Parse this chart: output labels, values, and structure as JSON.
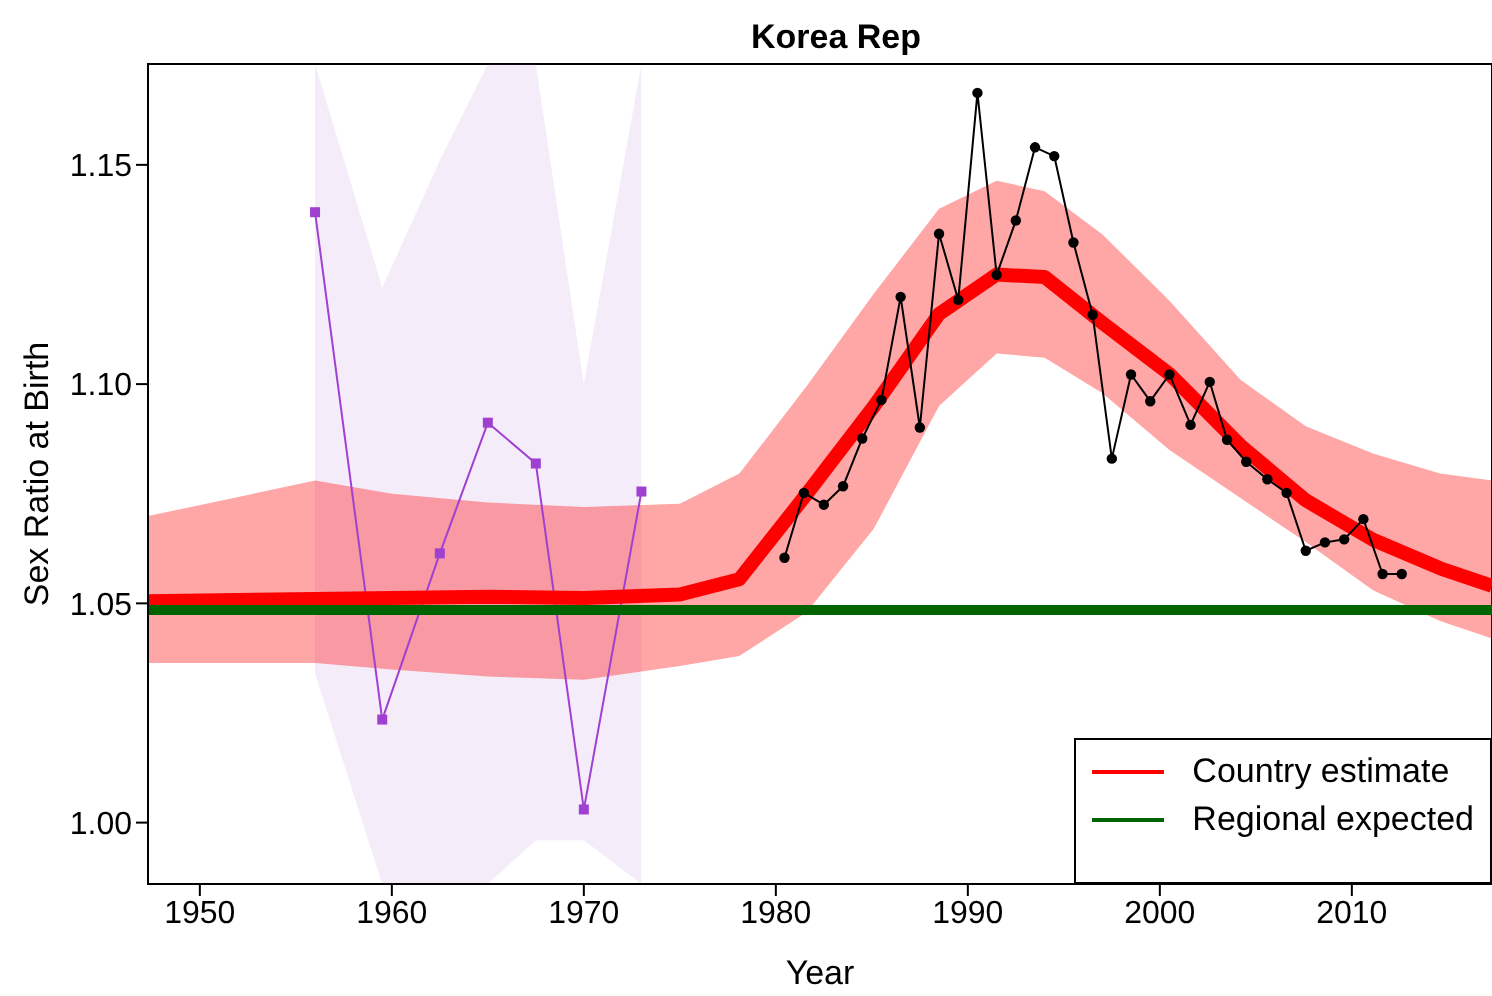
{
  "chart_data": {
    "type": "line",
    "title": "Korea Rep",
    "xlabel": "Year",
    "ylabel": "Sex Ratio at Birth",
    "xlim": [
      1947.3,
      2017.3
    ],
    "xticks": [
      1950,
      1960,
      1970,
      1980,
      1990,
      2000,
      2010
    ],
    "ylim": [
      0.986,
      1.173
    ],
    "yticks": [
      {
        "value": 1.0,
        "label": "1.00"
      },
      {
        "value": 1.05,
        "label": "1.05"
      },
      {
        "value": 1.1,
        "label": "1.10"
      },
      {
        "value": 1.15,
        "label": "1.15"
      }
    ],
    "grid": false,
    "legend": "bottom right",
    "series": [
      {
        "color": "#a040d0",
        "marker": "square",
        "x": [
          1956,
          1959.5,
          1962.5,
          1965,
          1967.5,
          1970,
          1973
        ],
        "values": [
          1.1392,
          1.0235,
          1.0614,
          1.0912,
          1.0819,
          1.003,
          1.0755
        ],
        "lower": [
          1.034,
          0.986,
          0.986,
          0.986,
          0.996,
          0.996,
          0.986
        ],
        "upper": [
          1.173,
          1.122,
          1.151,
          1.173,
          1.173,
          1.1,
          1.173
        ]
      },
      {
        "name": "Country estimate",
        "color": "#ff0000",
        "marker": "none",
        "x": [
          1947.3,
          1956,
          1960,
          1965,
          1970,
          1975,
          1978.1,
          1981.6,
          1985.1,
          1988.5,
          1991.5,
          1994,
          1997,
          2000.5,
          2004.2,
          2007.6,
          2011.1,
          2014.6,
          2017.3
        ],
        "values": [
          1.0505,
          1.051,
          1.0512,
          1.0515,
          1.0512,
          1.052,
          1.0555,
          1.0749,
          1.0949,
          1.116,
          1.125,
          1.1244,
          1.114,
          1.1023,
          1.086,
          1.0735,
          1.0645,
          1.058,
          1.054
        ],
        "lower": [
          1.0364,
          1.0364,
          1.0349,
          1.0333,
          1.0326,
          1.0357,
          1.038,
          1.048,
          1.067,
          1.095,
          1.107,
          1.106,
          1.098,
          1.085,
          1.074,
          1.064,
          1.053,
          1.046,
          1.042
        ],
        "upper": [
          1.0699,
          1.078,
          1.075,
          1.073,
          1.072,
          1.0727,
          1.0796,
          1.0995,
          1.1206,
          1.14,
          1.1464,
          1.144,
          1.1342,
          1.119,
          1.101,
          1.0904,
          1.0842,
          1.0796,
          1.078
        ]
      },
      {
        "name": "Regional expected",
        "color": "#006400",
        "marker": "none",
        "x": [
          1947.3,
          2017.3
        ],
        "values": [
          1.0485,
          1.0485
        ]
      },
      {
        "color": "#000000",
        "marker": "circle",
        "x": [
          1980.45,
          1981.46,
          1982.5,
          1983.5,
          1984.5,
          1985.5,
          1986.5,
          1987.5,
          1988.5,
          1989.5,
          1990.5,
          1991.5,
          1992.5,
          1993.5,
          1994.5,
          1995.5,
          1996.5,
          1997.5,
          1998.5,
          1999.5,
          2000.5,
          2001.6,
          2002.6,
          2003.5,
          2004.5,
          2005.6,
          2006.6,
          2007.6,
          2008.6,
          2009.6,
          2010.6,
          2011.6,
          2012.6
        ],
        "values": [
          1.0604,
          1.0752,
          1.0725,
          1.0767,
          1.0876,
          1.0964,
          1.1199,
          1.0901,
          1.1343,
          1.1192,
          1.1664,
          1.1249,
          1.1373,
          1.154,
          1.152,
          1.1323,
          1.1158,
          1.083,
          1.1022,
          1.0961,
          1.1022,
          1.0907,
          1.1005,
          1.0873,
          1.0823,
          1.0783,
          1.0752,
          1.062,
          1.0639,
          1.0646,
          1.0692,
          1.0567,
          1.0567
        ]
      }
    ]
  }
}
